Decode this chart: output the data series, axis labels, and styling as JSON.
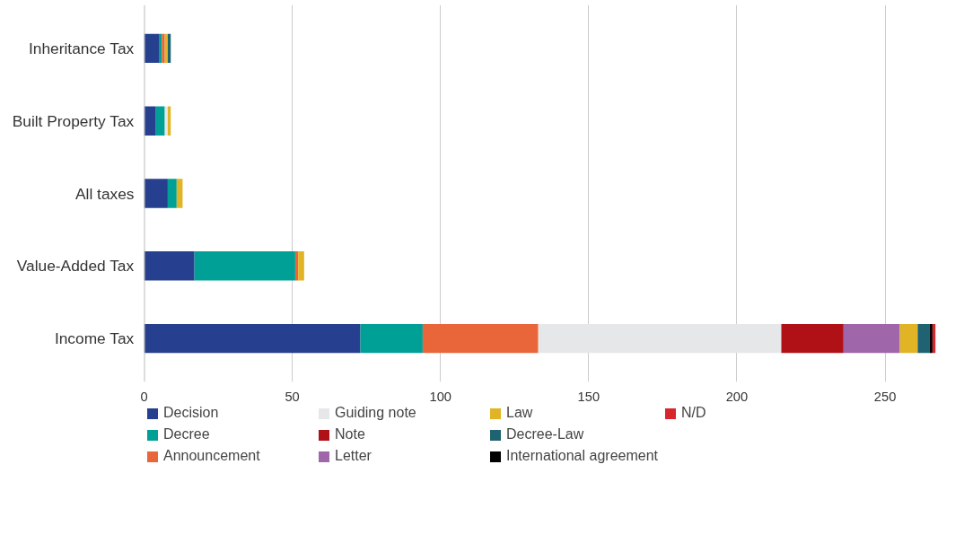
{
  "chart_data": {
    "type": "bar",
    "orientation": "horizontal",
    "stacked": true,
    "categories": [
      "Inheritance Tax",
      "Built Property Tax",
      "All taxes",
      "Value-Added Tax",
      "Income Tax"
    ],
    "series": [
      {
        "name": "Decision",
        "color": "#26408f",
        "values": [
          5,
          4,
          8,
          17,
          73
        ]
      },
      {
        "name": "Decree",
        "color": "#00a096",
        "values": [
          1,
          3,
          3,
          34,
          21
        ]
      },
      {
        "name": "Announcement",
        "color": "#e8663a",
        "values": [
          1,
          null,
          null,
          1,
          39
        ]
      },
      {
        "name": "Guiding note",
        "color": "#e6e7e8",
        "values": [
          null,
          1,
          null,
          null,
          82
        ]
      },
      {
        "name": "Note",
        "color": "#b01117",
        "values": [
          null,
          null,
          null,
          null,
          21
        ]
      },
      {
        "name": "Letter",
        "color": "#a066aa",
        "values": [
          null,
          null,
          null,
          null,
          19
        ]
      },
      {
        "name": "Law",
        "color": "#e0b425",
        "values": [
          1,
          1,
          2,
          2,
          6
        ]
      },
      {
        "name": "Decree-Law",
        "color": "#1f6272",
        "values": [
          1,
          null,
          null,
          null,
          4
        ]
      },
      {
        "name": "International agreement",
        "color": "#000000",
        "values": [
          null,
          null,
          null,
          null,
          1
        ]
      },
      {
        "name": "N/D",
        "color": "#d7262e",
        "values": [
          null,
          null,
          null,
          null,
          1
        ]
      }
    ],
    "xlim": [
      0,
      268
    ],
    "xticks": [
      0,
      50,
      100,
      150,
      200,
      250
    ],
    "grid": "x",
    "legend": "bottom"
  }
}
